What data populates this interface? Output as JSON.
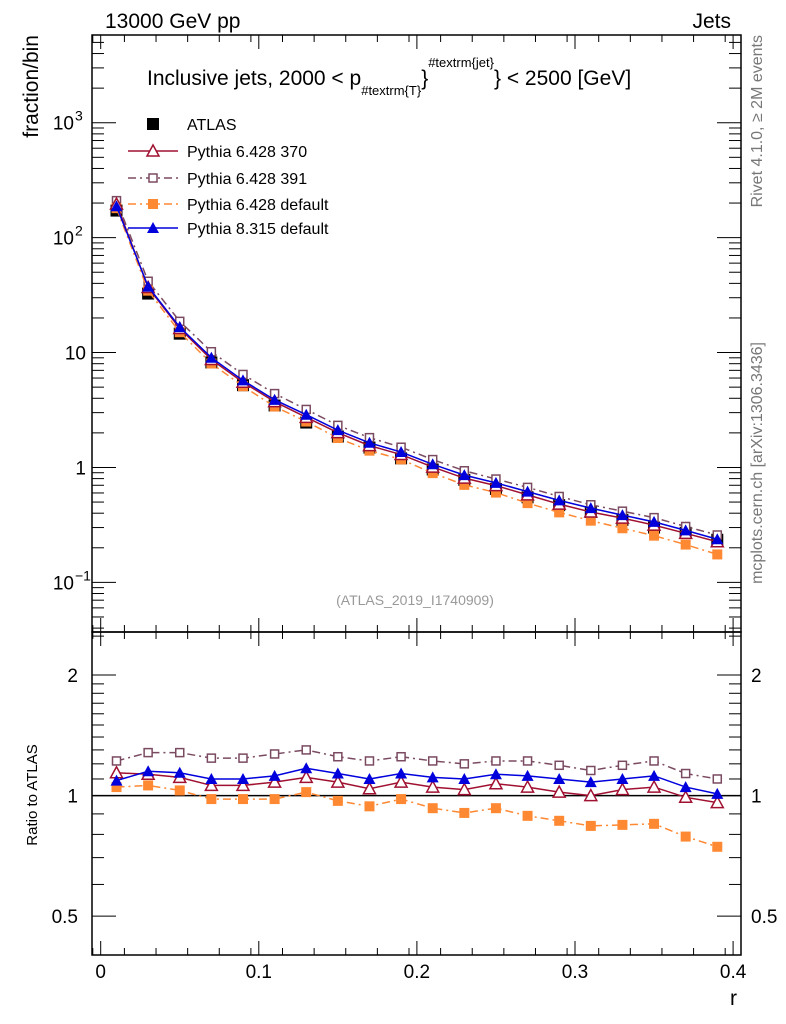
{
  "header": {
    "left": "13000 GeV pp",
    "right": "Jets"
  },
  "side_text": {
    "rivet": "Rivet 4.1.0, ≥ 2M events",
    "mcplots": "mcplots.cern.ch [arXiv:1306.3436]"
  },
  "analysis_id": "(ATLAS_2019_I1740909)",
  "chart_data": {
    "type": "line",
    "title": "Inclusive jets, 2000 < p_{#textrm{T}}^{#textrm{jet}} < 2500 [GeV]",
    "title_parts": {
      "a": "Inclusive jets, 2000 < p",
      "sub": "#textrm{T}",
      "mid": "}",
      "sup": "#textrm{jet}",
      "b": "} < 2500 [GeV]"
    },
    "xlabel": "r",
    "ylabel": "fraction/bin",
    "ratio_ylabel": "Ratio to ATLAS",
    "xlim": [
      -0.0055,
      0.405
    ],
    "ylim": [
      0.037,
      5800
    ],
    "yscale": "log",
    "ratio_ylim": [
      0.4,
      2.56
    ],
    "ratio_scale": "log",
    "x_ticks": [
      "0",
      "0.1",
      "0.2",
      "0.3",
      "0.4"
    ],
    "x_tick_values": [
      0,
      0.1,
      0.2,
      0.3,
      0.4
    ],
    "y_ticks": [
      {
        "v": 1000,
        "label": "10",
        "exp": "3"
      },
      {
        "v": 100,
        "label": "10",
        "exp": "2"
      },
      {
        "v": 10,
        "label": "10",
        "exp": ""
      },
      {
        "v": 1,
        "label": "1",
        "exp": ""
      },
      {
        "v": 0.1,
        "label": "10",
        "exp": "−1"
      }
    ],
    "ratio_ticks": [
      {
        "v": 2,
        "label": "2"
      },
      {
        "v": 1,
        "label": "1"
      },
      {
        "v": 0.5,
        "label": "0.5"
      }
    ],
    "x": [
      0.01,
      0.03,
      0.05,
      0.07,
      0.09,
      0.11,
      0.13,
      0.15,
      0.17,
      0.19,
      0.21,
      0.23,
      0.25,
      0.27,
      0.29,
      0.31,
      0.33,
      0.35,
      0.37,
      0.39
    ],
    "legend_position": "top-left",
    "series": [
      {
        "name": "ATLAS",
        "color": "#000000",
        "marker": "filled-square",
        "line": "none",
        "values": [
          172,
          32.6,
          14.6,
          8.2,
          5.2,
          3.46,
          2.46,
          1.86,
          1.49,
          1.2,
          0.96,
          0.78,
          0.65,
          0.55,
          0.47,
          0.41,
          0.35,
          0.3,
          0.27,
          0.235
        ]
      },
      {
        "name": "Pythia 6.428 370",
        "color": "#a01030",
        "marker": "open-triangle",
        "line": "solid",
        "ratio": [
          1.14,
          1.13,
          1.11,
          1.06,
          1.06,
          1.08,
          1.11,
          1.08,
          1.04,
          1.08,
          1.05,
          1.035,
          1.07,
          1.05,
          1.02,
          1.0,
          1.035,
          1.05,
          0.99,
          0.96
        ]
      },
      {
        "name": "Pythia 6.428 391",
        "color": "#7a4a60",
        "marker": "open-square",
        "line": "dashdot",
        "ratio": [
          1.22,
          1.28,
          1.28,
          1.24,
          1.24,
          1.27,
          1.3,
          1.25,
          1.22,
          1.25,
          1.22,
          1.2,
          1.22,
          1.22,
          1.19,
          1.155,
          1.19,
          1.22,
          1.135,
          1.1
        ]
      },
      {
        "name": "Pythia 6.428 default",
        "color": "#ff8833",
        "marker": "filled-square",
        "line": "dashdot",
        "ratio": [
          1.05,
          1.06,
          1.03,
          0.98,
          0.98,
          0.98,
          1.02,
          0.97,
          0.94,
          0.98,
          0.93,
          0.905,
          0.93,
          0.89,
          0.865,
          0.84,
          0.845,
          0.85,
          0.79,
          0.745
        ]
      },
      {
        "name": "Pythia 8.315 default",
        "color": "#0000dd",
        "marker": "filled-triangle",
        "line": "solid",
        "ratio": [
          1.09,
          1.15,
          1.14,
          1.1,
          1.1,
          1.12,
          1.17,
          1.135,
          1.1,
          1.135,
          1.11,
          1.1,
          1.13,
          1.12,
          1.1,
          1.08,
          1.1,
          1.12,
          1.05,
          1.01
        ]
      }
    ]
  }
}
